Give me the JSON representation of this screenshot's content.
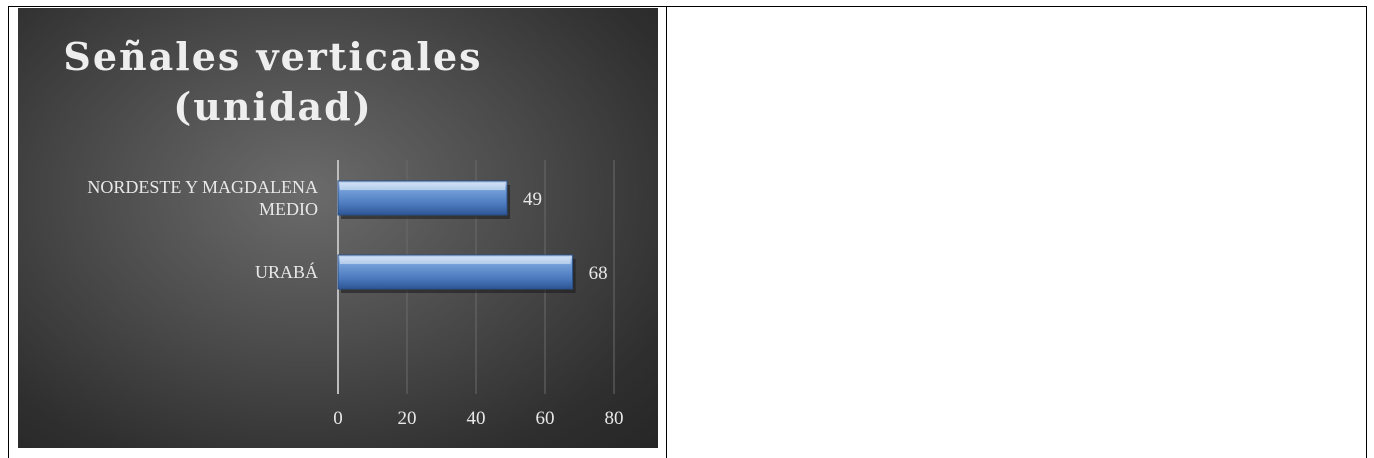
{
  "colors": {
    "bar": "#4f81bd",
    "bar_light": "#a9c4e8",
    "panel": "#4a4a4a"
  },
  "chart_data": {
    "type": "bar",
    "orientation": "horizontal",
    "title": [
      "Señales verticales",
      "(unidad)"
    ],
    "categories": [
      {
        "lines": [
          "NORDESTE Y MAGDALENA",
          "MEDIO"
        ],
        "value": 49,
        "label": "49"
      },
      {
        "lines": [
          "URABÁ"
        ],
        "value": 68,
        "label": "68"
      }
    ],
    "xlim": [
      0,
      80
    ],
    "xticks": [
      "0",
      "20",
      "40",
      "60",
      "80"
    ],
    "grid": true,
    "legend": "none"
  }
}
